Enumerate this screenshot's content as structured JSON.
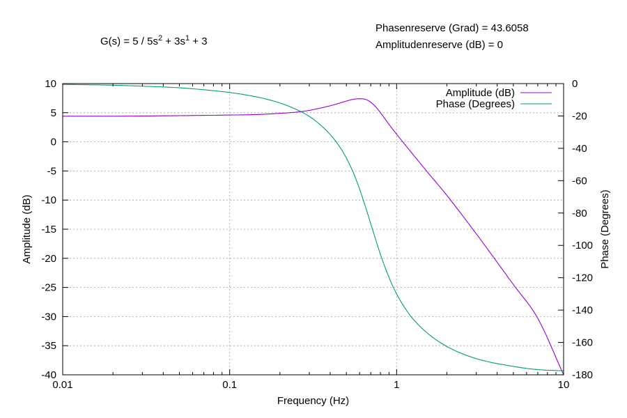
{
  "header": {
    "tf_parts": [
      "G(s) = 5 / 5s",
      "2",
      " + 3s",
      "1",
      " + 3"
    ],
    "phase_margin": "Phasenreserve (Grad) = 43.6058",
    "gain_margin": "Amplitudenreserve (dB) = 0"
  },
  "chart_data": {
    "type": "line",
    "x_scale": "log",
    "xlim": [
      0.01,
      10
    ],
    "ylim": [
      -40,
      10
    ],
    "y2lim": [
      -180,
      0
    ],
    "xlabel": "Frequency (Hz)",
    "ylabel": "Amplitude (dB)",
    "y2label": "Phase (Degrees)",
    "x_ticks": [
      "0.01",
      "0.1",
      "1",
      "10"
    ],
    "y_ticks": [
      "10",
      "5",
      "0",
      "-5",
      "-10",
      "-15",
      "-20",
      "-25",
      "-30",
      "-35",
      "-40"
    ],
    "y2_ticks": [
      "0",
      "-20",
      "-40",
      "-60",
      "-80",
      "-100",
      "-120",
      "-140",
      "-160",
      "-180"
    ],
    "grid": true,
    "legend_position": "top-right",
    "series": [
      {
        "name": "Amplitude (dB)",
        "axis": "left",
        "color": "#9400d3",
        "x": [
          0.01,
          0.02,
          0.05,
          0.1,
          0.15,
          0.2,
          0.25,
          0.3,
          0.35,
          0.4,
          0.45,
          0.5,
          0.55,
          0.6,
          0.65,
          0.7,
          0.75,
          0.8,
          0.9,
          1.0,
          1.2,
          1.5,
          2,
          3,
          5,
          7,
          10
        ],
        "values": [
          4.4,
          4.4,
          4.5,
          4.6,
          4.7,
          4.9,
          5.1,
          5.4,
          5.8,
          6.2,
          6.6,
          7.0,
          7.3,
          7.4,
          7.3,
          6.8,
          6.0,
          5.0,
          3.0,
          1.3,
          -1.5,
          -4.9,
          -9.2,
          -15.8,
          -24.5,
          -30.3,
          -40.0
        ]
      },
      {
        "name": "Phase (Degrees)",
        "axis": "right",
        "color": "#009e73",
        "x": [
          0.01,
          0.02,
          0.03,
          0.05,
          0.07,
          0.1,
          0.13,
          0.16,
          0.2,
          0.25,
          0.3,
          0.35,
          0.4,
          0.45,
          0.5,
          0.55,
          0.6,
          0.65,
          0.7,
          0.75,
          0.8,
          0.9,
          1.0,
          1.2,
          1.5,
          2,
          3,
          5,
          7,
          10
        ],
        "values": [
          -0.5,
          -1.0,
          -1.6,
          -2.6,
          -3.8,
          -5.5,
          -7.3,
          -9.2,
          -12.0,
          -15.9,
          -20.3,
          -25.6,
          -31.5,
          -38.2,
          -46.0,
          -55.0,
          -65.2,
          -76.0,
          -86.7,
          -96.6,
          -105.6,
          -119.8,
          -130.0,
          -143.0,
          -153.5,
          -162.5,
          -170.0,
          -174.8,
          -176.8,
          -177.5
        ]
      }
    ]
  }
}
